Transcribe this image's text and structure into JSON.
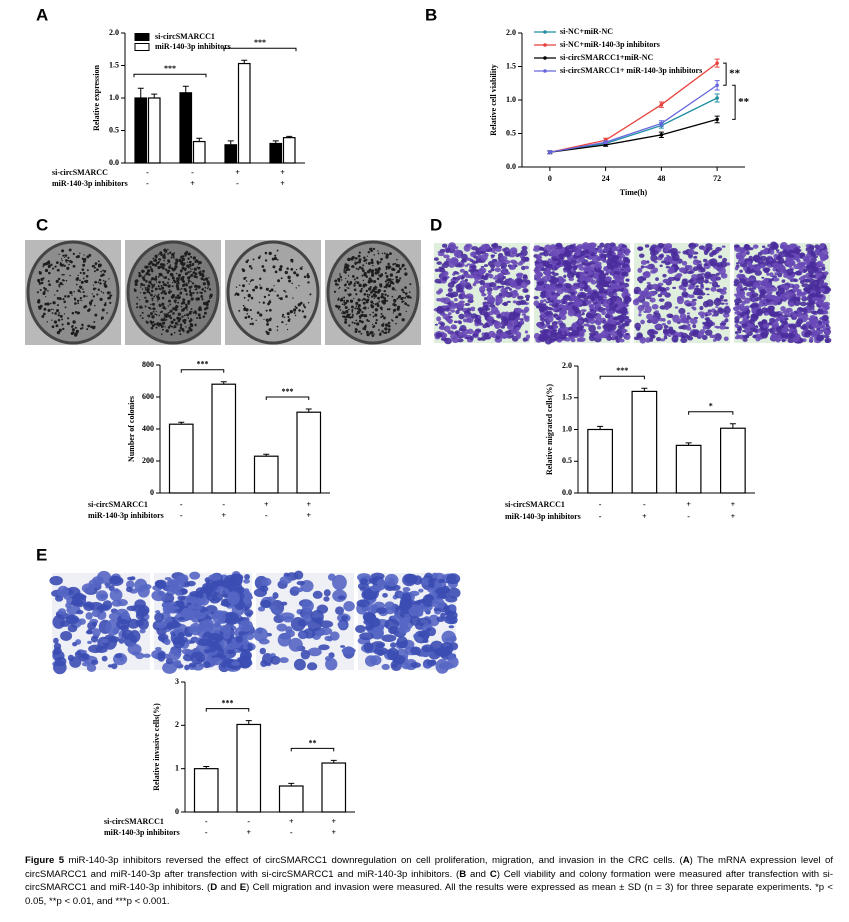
{
  "panel_labels": [
    "A",
    "B",
    "C",
    "D",
    "E"
  ],
  "chart_data": [
    {
      "type": "bar",
      "ylabel": "Relative expression",
      "series": [
        {
          "name": "si-circSMARCC1",
          "color": "#000000",
          "values": [
            1.0,
            1.08,
            0.28,
            0.3
          ],
          "errors": [
            0.15,
            0.1,
            0.06,
            0.04
          ]
        },
        {
          "name": "miR-140-3p inhibitors",
          "color": "#ffffff",
          "values": [
            1.0,
            0.33,
            1.53,
            0.39
          ],
          "errors": [
            0.06,
            0.05,
            0.05,
            0.02
          ]
        }
      ],
      "conditions": [
        {
          "name": "si-circSMARCC",
          "values": [
            "-",
            "-",
            "+",
            "+"
          ]
        },
        {
          "name": "miR-140-3p inhibitors",
          "values": [
            "-",
            "+",
            "-",
            "+"
          ]
        }
      ],
      "ylim": [
        0,
        2
      ],
      "yticks": [
        {
          "value": 0,
          "label": "0.0"
        },
        0.5,
        {
          "value": 1,
          "label": "1.0"
        },
        1.5,
        {
          "value": 2,
          "label": "2.0"
        }
      ],
      "annotations": [
        {
          "text": "***",
          "between": [
            0,
            1
          ]
        },
        {
          "text": "***",
          "between": [
            2,
            3
          ]
        }
      ]
    },
    {
      "type": "line",
      "xlabel": "Time(h)",
      "ylabel": "Relative cell viability",
      "x": [
        0,
        24,
        48,
        72
      ],
      "series": [
        {
          "name": "si-NC+miR-NC",
          "color": "#1f8fa3",
          "values": [
            0.22,
            0.35,
            0.62,
            1.03
          ],
          "errors": [
            0.02,
            0.02,
            0.04,
            0.06
          ]
        },
        {
          "name": "si-NC+miR-140-3p inhibitors",
          "color": "#e8413c",
          "values": [
            0.22,
            0.4,
            0.93,
            1.55
          ],
          "errors": [
            0.02,
            0.03,
            0.04,
            0.06
          ]
        },
        {
          "name": "si-circSMARCC1+miR-NC",
          "color": "#000000",
          "values": [
            0.22,
            0.33,
            0.48,
            0.71
          ],
          "errors": [
            0.02,
            0.02,
            0.04,
            0.05
          ]
        },
        {
          "name": "si-circSMARCC1+ miR-140-3p inhibitors",
          "color": "#6666dd",
          "values": [
            0.22,
            0.37,
            0.65,
            1.22
          ],
          "errors": [
            0.02,
            0.02,
            0.04,
            0.07
          ]
        }
      ],
      "xlim": [
        -12,
        84
      ],
      "xticks": [
        0,
        24,
        48,
        72
      ],
      "ylim": [
        0,
        2
      ],
      "yticks": [
        {
          "value": 0,
          "label": "0.0"
        },
        0.5,
        {
          "value": 1,
          "label": "1.0"
        },
        1.5,
        {
          "value": 2,
          "label": "2.0"
        }
      ],
      "annotations": [
        {
          "text": "**",
          "between_series": [
            1,
            3
          ]
        },
        {
          "text": "**",
          "between_series": [
            3,
            2
          ]
        }
      ]
    },
    {
      "type": "bar",
      "ylabel": "Number of colonies",
      "color": "#ffffff",
      "values": [
        430,
        680,
        230,
        505
      ],
      "errors": [
        12,
        15,
        12,
        20
      ],
      "conditions": [
        {
          "name": "si-circSMARCC1",
          "values": [
            "-",
            "-",
            "+",
            "+"
          ]
        },
        {
          "name": "miR-140-3p inhibitors",
          "values": [
            "-",
            "+",
            "-",
            "+"
          ]
        }
      ],
      "ylim": [
        0,
        800
      ],
      "yticks": [
        0,
        200,
        400,
        600,
        800
      ],
      "annotations": [
        {
          "text": "***",
          "between": [
            0,
            1
          ]
        },
        {
          "text": "***",
          "between": [
            2,
            3
          ]
        }
      ]
    },
    {
      "type": "bar",
      "ylabel": "Relative migrated cells(%)",
      "color": "#ffffff",
      "values": [
        1.0,
        1.6,
        0.75,
        1.02
      ],
      "errors": [
        0.05,
        0.05,
        0.04,
        0.07
      ],
      "conditions": [
        {
          "name": "si-circSMARCC1",
          "values": [
            "-",
            "-",
            "+",
            "+"
          ]
        },
        {
          "name": "miR-140-3p inhibitors",
          "values": [
            "-",
            "+",
            "-",
            "+"
          ]
        }
      ],
      "ylim": [
        0,
        2
      ],
      "yticks": [
        {
          "value": 0,
          "label": "0.0"
        },
        0.5,
        {
          "value": 1,
          "label": "1.0"
        },
        1.5,
        {
          "value": 2,
          "label": "2.0"
        }
      ],
      "annotations": [
        {
          "text": "***",
          "between": [
            0,
            1
          ]
        },
        {
          "text": "*",
          "between": [
            2,
            3
          ]
        }
      ]
    },
    {
      "type": "bar",
      "ylabel": "Relative invasive cells(%)",
      "color": "#ffffff",
      "values": [
        1.0,
        2.02,
        0.6,
        1.13
      ],
      "errors": [
        0.05,
        0.09,
        0.06,
        0.06
      ],
      "conditions": [
        {
          "name": "si-circSMARCC1",
          "values": [
            "-",
            "-",
            "+",
            "+"
          ]
        },
        {
          "name": "miR-140-3p inhibitors",
          "values": [
            "-",
            "+",
            "-",
            "+"
          ]
        }
      ],
      "ylim": [
        0,
        3
      ],
      "yticks": [
        0,
        1,
        2,
        3
      ],
      "annotations": [
        {
          "text": "***",
          "between": [
            0,
            1
          ]
        },
        {
          "text": "**",
          "between": [
            2,
            3
          ]
        }
      ]
    }
  ],
  "caption": [
    {
      "text": "Figure 5",
      "bold": true
    },
    {
      "text": " miR-140-3p inhibitors reversed the effect of circSMARCC1 downregulation on cell proliferation, migration, and invasion in the CRC cells. (",
      "bold": false
    },
    {
      "text": "A",
      "bold": true
    },
    {
      "text": ") The mRNA expression level of circSMARCC1 and miR-140-3p after transfection with si-circSMARCC1 and miR-140-3p inhibitors. (",
      "bold": false
    },
    {
      "text": "B",
      "bold": true
    },
    {
      "text": " and ",
      "bold": false
    },
    {
      "text": "C",
      "bold": true
    },
    {
      "text": ") Cell viability and colony formation were measured after transfection with si-circSMARCC1 and miR-140-3p inhibitors. (",
      "bold": false
    },
    {
      "text": "D",
      "bold": true
    },
    {
      "text": " and ",
      "bold": false
    },
    {
      "text": "E",
      "bold": true
    },
    {
      "text": ") Cell migration and invasion were measured. All the results were expressed as mean ± SD (n = 3) for three separate experiments. *p < 0.05, **p < 0.01, and ***p < 0.001.",
      "bold": false
    }
  ]
}
